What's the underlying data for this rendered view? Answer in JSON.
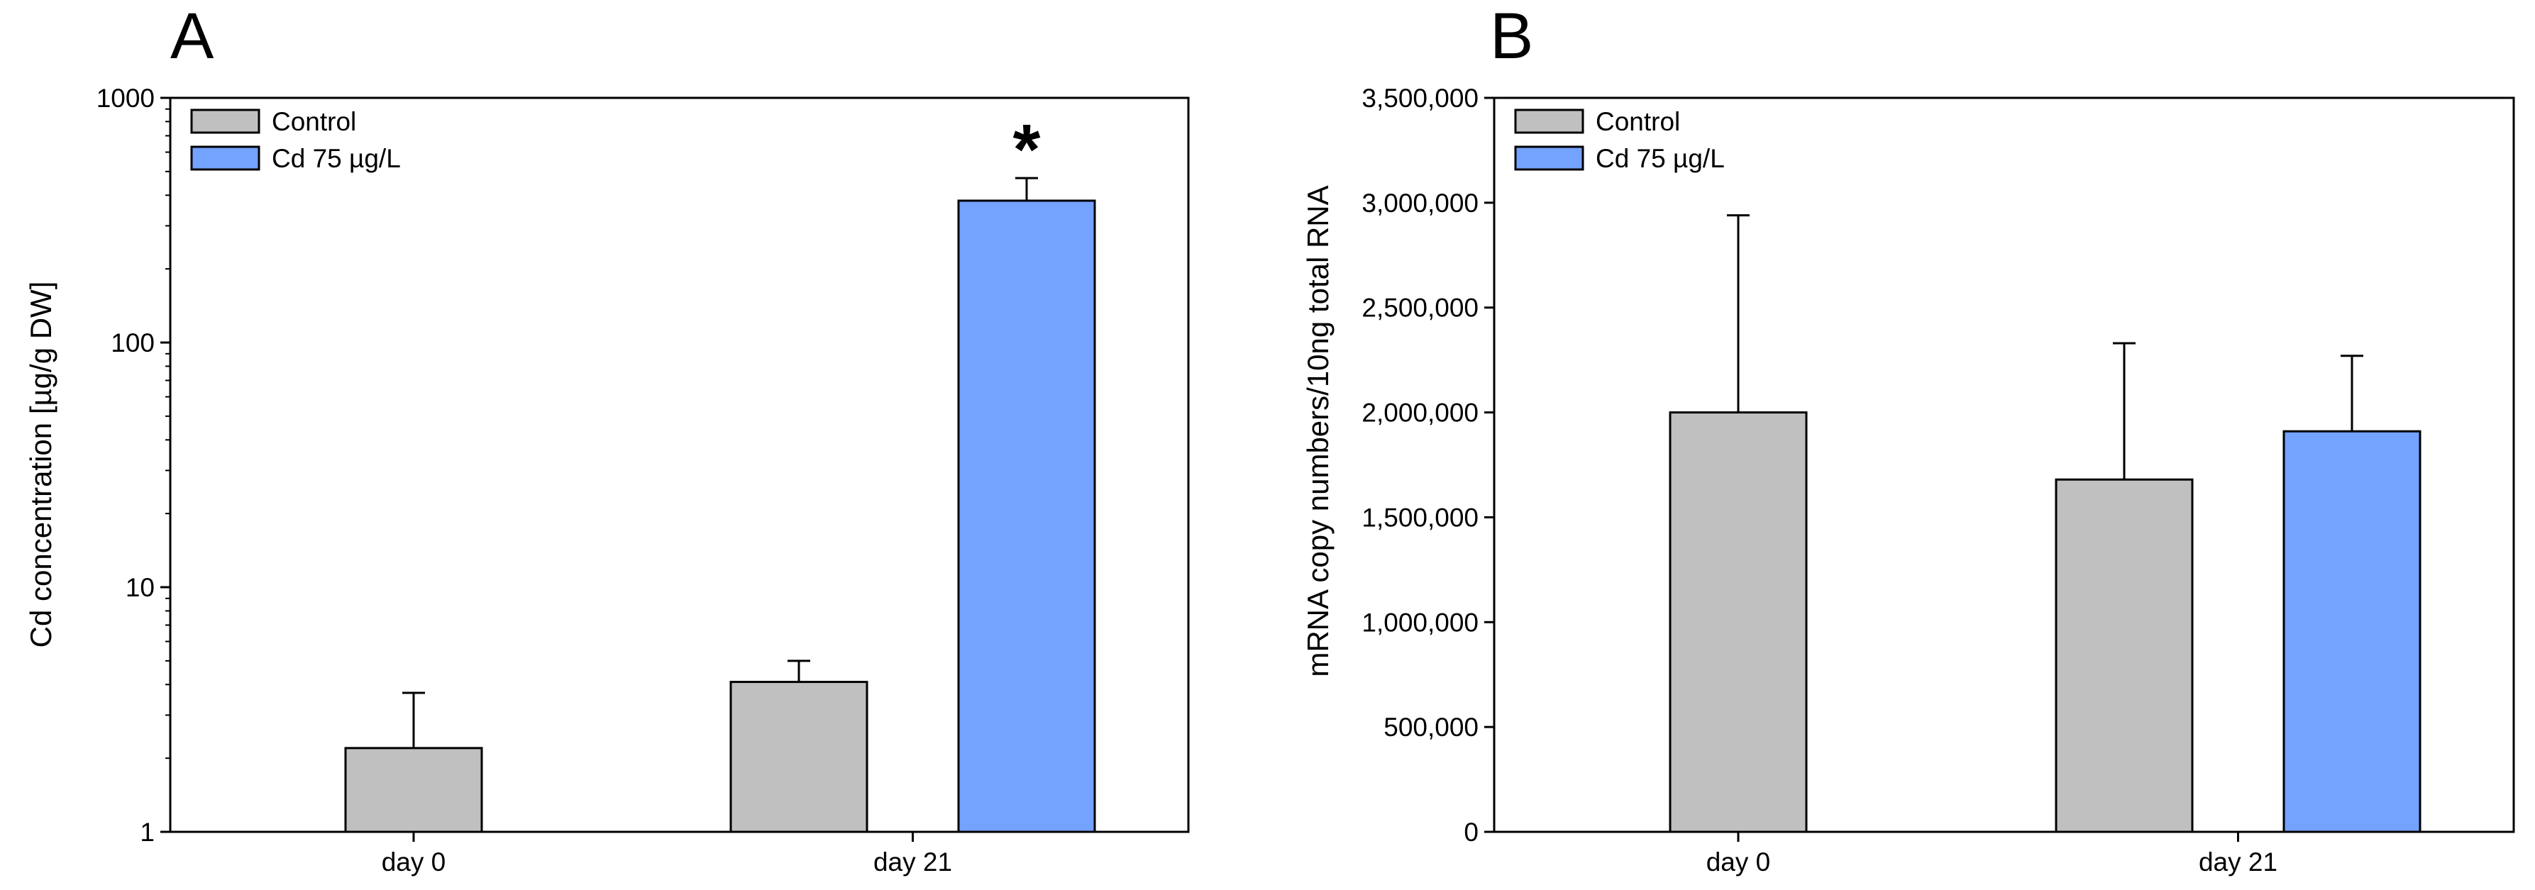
{
  "chart_data": [
    {
      "panel": "A",
      "type": "bar",
      "yscale": "log",
      "ylabel": "Cd concentration [µg/g DW]",
      "xlabel": "",
      "ylim": [
        1,
        1000
      ],
      "yticks": [
        1,
        10,
        100,
        1000
      ],
      "ytick_labels": [
        "1",
        "10",
        "100",
        "1000"
      ],
      "categories": [
        "day 0",
        "day 21"
      ],
      "series": [
        {
          "name": "Control",
          "color": "#c0c0c0",
          "values": [
            2.2,
            4.1
          ],
          "errors": [
            1.5,
            0.9
          ]
        },
        {
          "name": "Cd 75 µg/L",
          "color": "#74a2ff",
          "values": [
            null,
            380
          ],
          "errors": [
            null,
            90
          ]
        }
      ],
      "annotations": [
        {
          "text": "*",
          "category": "day 21",
          "series": "Cd 75 µg/L"
        }
      ],
      "legend": {
        "position": "top-left",
        "entries": [
          "Control",
          "Cd 75 µg/L"
        ]
      }
    },
    {
      "panel": "B",
      "type": "bar",
      "yscale": "linear",
      "ylabel": "mRNA copy numbers/10ng total RNA",
      "xlabel": "",
      "ylim": [
        0,
        3500000
      ],
      "yticks": [
        0,
        500000,
        1000000,
        1500000,
        2000000,
        2500000,
        3000000,
        3500000
      ],
      "ytick_labels": [
        "0",
        "500,000",
        "1,000,000",
        "1,500,000",
        "2,000,000",
        "2,500,000",
        "3,000,000",
        "3,500,000"
      ],
      "categories": [
        "day 0",
        "day 21"
      ],
      "series": [
        {
          "name": "Control",
          "color": "#c0c0c0",
          "values": [
            2000000,
            1680000
          ],
          "errors": [
            940000,
            650000
          ]
        },
        {
          "name": "Cd 75 µg/L",
          "color": "#74a2ff",
          "values": [
            null,
            1910000
          ],
          "errors": [
            null,
            360000
          ]
        }
      ],
      "legend": {
        "position": "top-left",
        "entries": [
          "Control",
          "Cd 75 µg/L"
        ]
      }
    }
  ]
}
